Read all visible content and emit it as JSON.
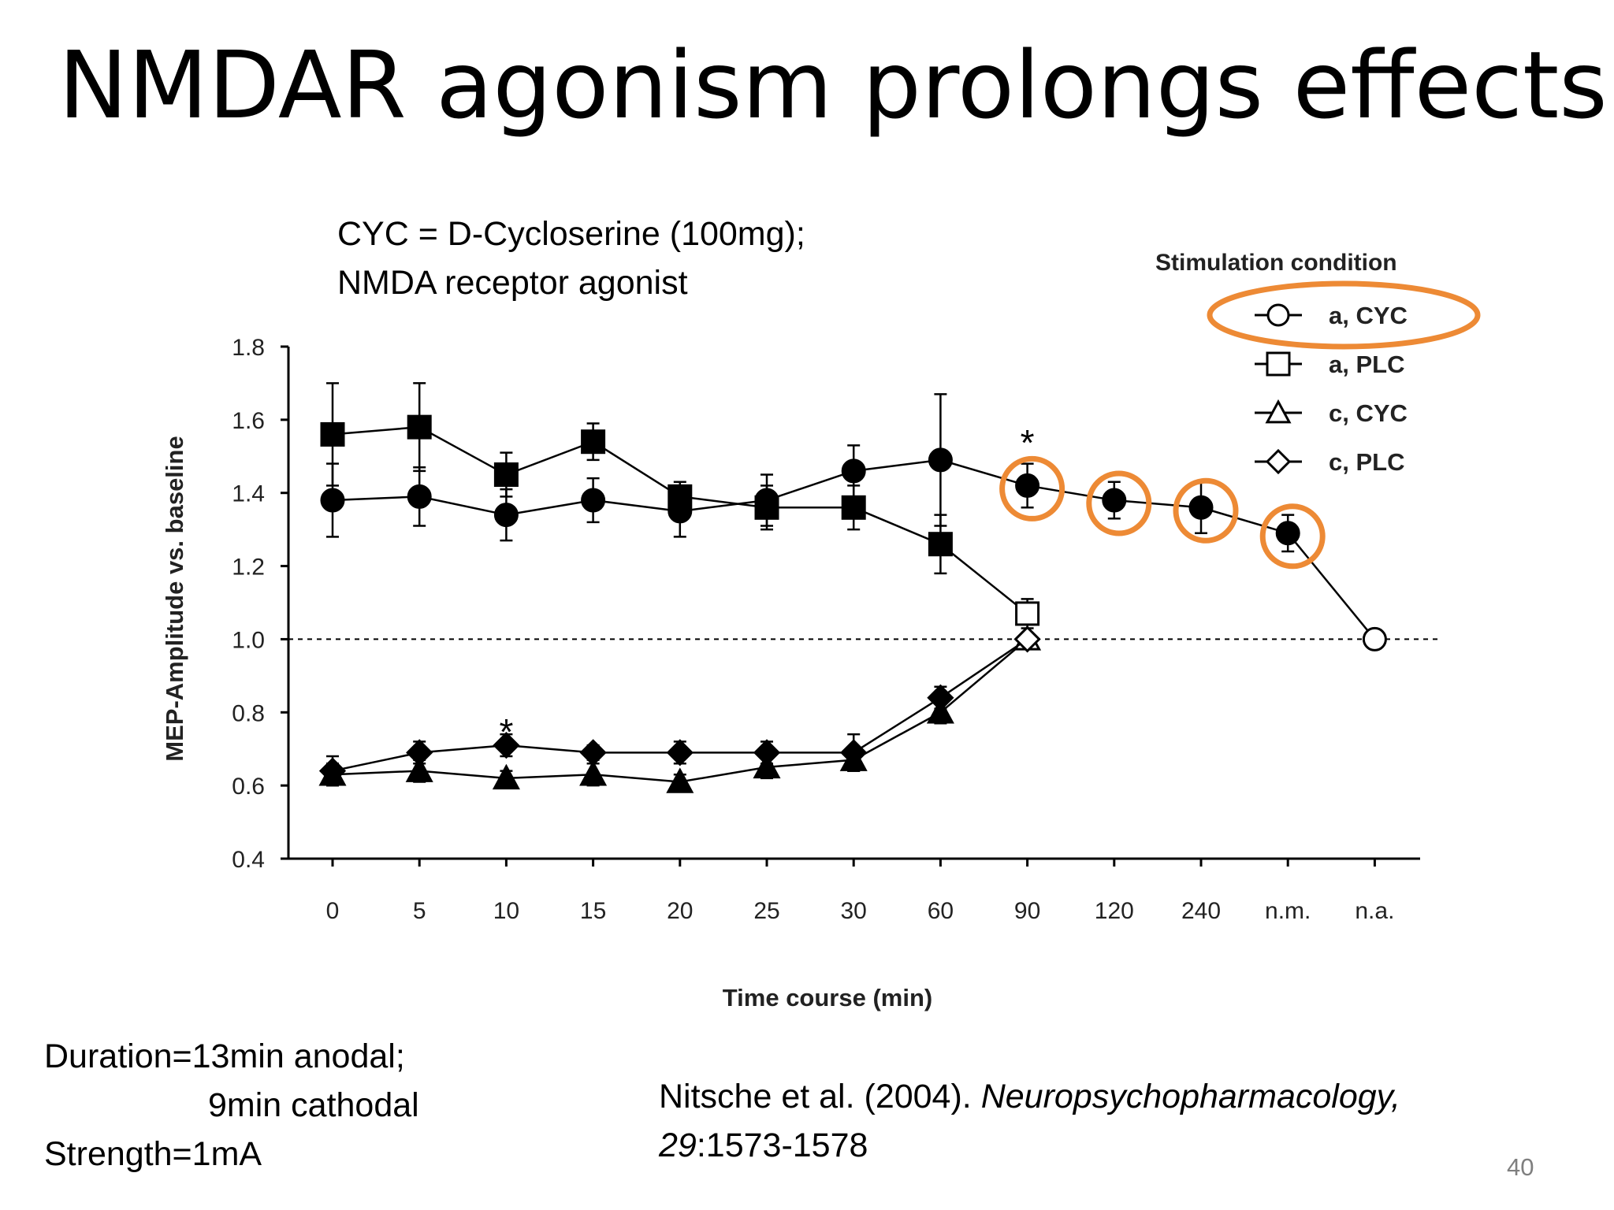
{
  "slide": {
    "title": "NMDAR agonism prolongs effects",
    "note_cyc": [
      "CYC = D-Cycloserine (100mg);",
      "NMDA receptor agonist"
    ],
    "note_params": [
      "Duration=13min anodal;",
      "9min cathodal",
      "Strength=1mA"
    ],
    "citation": {
      "authors": "Nitsche et al. (2004). ",
      "journal": "Neuropsychopharmacology,",
      "volume": "29",
      "pages": ":1573-1578"
    },
    "page_number": "40"
  },
  "colors": {
    "highlight": "#ed8a35",
    "ink": "#000000",
    "page_number": "#7f7f7f"
  },
  "chart_data": {
    "type": "line",
    "xlabel": "Time course (min)",
    "ylabel": "MEP-Amplitude vs. baseline",
    "categories": [
      "0",
      "5",
      "10",
      "15",
      "20",
      "25",
      "30",
      "60",
      "90",
      "120",
      "240",
      "n.m.",
      "n.a."
    ],
    "yticks": [
      "1.8",
      "1.6",
      "1.4",
      "1.2",
      "1.0",
      "0.8",
      "0.6",
      "0.4"
    ],
    "ylim": [
      0.4,
      1.8
    ],
    "baseline": 1.0,
    "grid": false,
    "legend": {
      "title": "Stimulation condition",
      "position": "top-right",
      "entries": [
        "a, CYC",
        "a, PLC",
        "c, CYC",
        "c, PLC"
      ],
      "markers": [
        "circle",
        "square",
        "triangle",
        "diamond"
      ]
    },
    "series": [
      {
        "name": "a, CYC",
        "marker": "circle",
        "values": [
          1.38,
          1.39,
          1.34,
          1.38,
          1.35,
          1.38,
          1.46,
          1.49,
          1.42,
          1.38,
          1.36,
          1.29,
          1.0
        ],
        "error": [
          0.1,
          0.08,
          0.07,
          0.06,
          0.07,
          0.07,
          0.07,
          0.18,
          0.06,
          0.05,
          0.07,
          0.05,
          0
        ],
        "filled": [
          true,
          true,
          true,
          true,
          true,
          true,
          true,
          true,
          true,
          true,
          true,
          true,
          false
        ]
      },
      {
        "name": "a, PLC",
        "marker": "square",
        "values": [
          1.56,
          1.58,
          1.45,
          1.54,
          1.39,
          1.36,
          1.36,
          1.26,
          1.07,
          null,
          null,
          null,
          null
        ],
        "error": [
          0.14,
          0.12,
          0.06,
          0.05,
          0.04,
          0.06,
          0.06,
          0.08,
          0.04,
          0,
          0,
          0,
          0
        ],
        "filled": [
          true,
          true,
          true,
          true,
          true,
          true,
          true,
          true,
          false,
          false,
          false,
          false,
          false
        ]
      },
      {
        "name": "c, CYC",
        "marker": "triangle",
        "values": [
          0.63,
          0.64,
          0.62,
          0.63,
          0.61,
          0.65,
          0.67,
          0.8,
          1.0,
          null,
          null,
          null,
          null
        ],
        "error": [
          0.03,
          0.03,
          0.02,
          0.03,
          0.02,
          0.03,
          0.03,
          0.03,
          0,
          0,
          0,
          0,
          0
        ],
        "filled": [
          true,
          true,
          true,
          true,
          true,
          true,
          true,
          true,
          false,
          false,
          false,
          false,
          false
        ]
      },
      {
        "name": "c, PLC",
        "marker": "diamond",
        "values": [
          0.64,
          0.69,
          0.71,
          0.69,
          0.69,
          0.69,
          0.69,
          0.84,
          1.0,
          null,
          null,
          null,
          null
        ],
        "error": [
          0.04,
          0.03,
          0.03,
          0.02,
          0.03,
          0.03,
          0.05,
          0.03,
          0,
          0,
          0,
          0,
          0
        ],
        "filled": [
          true,
          true,
          true,
          true,
          true,
          true,
          true,
          true,
          false,
          false,
          false,
          false,
          false
        ]
      }
    ],
    "annotations": [
      {
        "text": "*",
        "x": "10",
        "y": 0.76
      },
      {
        "text": "*",
        "x": "90",
        "y": 1.55
      }
    ],
    "highlighted_points": [
      {
        "series": "a, CYC",
        "x": "90"
      },
      {
        "series": "a, CYC",
        "x": "120"
      },
      {
        "series": "a, CYC",
        "x": "240"
      },
      {
        "series": "a, CYC",
        "x": "n.m."
      }
    ],
    "highlighted_legend_entry": "a, CYC"
  }
}
